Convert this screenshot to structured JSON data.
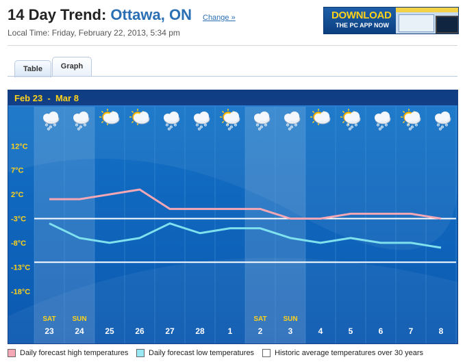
{
  "header": {
    "title_prefix": "14 Day Trend:",
    "title_location": "Ottawa, ON",
    "change_link": "Change »",
    "local_time": "Local Time: Friday, February 22, 2013, 5:34 pm"
  },
  "banner": {
    "line1": "DOWNLOAD",
    "line2": "THE PC APP NOW"
  },
  "tabs": [
    {
      "label": "Table",
      "active": false
    },
    {
      "label": "Graph",
      "active": true
    }
  ],
  "chart_data": {
    "type": "line",
    "date_range": "Feb 23  -  Mar 8",
    "categories": [
      "23",
      "24",
      "25",
      "26",
      "27",
      "28",
      "1",
      "2",
      "3",
      "4",
      "5",
      "6",
      "7",
      "8"
    ],
    "day_labels": [
      "SAT",
      "SUN",
      "",
      "",
      "",
      "",
      "",
      "SAT",
      "SUN",
      "",
      "",
      "",
      "",
      ""
    ],
    "weekend_shaded": [
      true,
      true,
      false,
      false,
      false,
      false,
      false,
      true,
      true,
      false,
      false,
      false,
      false,
      false
    ],
    "icons": [
      "snow-flurries-icon",
      "snow-icon",
      "partly-sunny-icon",
      "sunny-cloudy-icon",
      "snow-icon",
      "snow-icon",
      "sun-snow-icon",
      "snow-icon",
      "snow-icon",
      "partly-sunny-icon",
      "sun-snow-icon",
      "snow-icon",
      "sun-snow-icon",
      "snow-icon"
    ],
    "y_ticks": [
      "12°C",
      "7°C",
      "2°C",
      "-3°C",
      "-8°C",
      "-13°C",
      "-18°C"
    ],
    "y_tick_values": [
      12,
      7,
      2,
      -3,
      -8,
      -13,
      -18
    ],
    "ylim": [
      -21,
      15
    ],
    "series": [
      {
        "name": "Daily forecast high temperatures",
        "color": "#f4a7b4",
        "values": [
          1,
          1,
          2,
          3,
          -1,
          -1,
          -1,
          -1,
          -3,
          -3,
          -2,
          -2,
          -2,
          -3
        ]
      },
      {
        "name": "Daily forecast low temperatures",
        "color": "#7fe0ee",
        "values": [
          -4,
          -7,
          -8,
          -7,
          -4,
          -6,
          -5,
          -5,
          -7,
          -8,
          -7,
          -8,
          -8,
          -9
        ]
      }
    ],
    "historic_avg": {
      "name": "Historic average temperatures over 30 years",
      "color": "#ffffff",
      "high": -3,
      "low": -12
    },
    "grid": true
  },
  "legend": [
    {
      "label": "Daily forecast high temperatures",
      "color": "#f4a7b4"
    },
    {
      "label": "Daily forecast low temperatures",
      "color": "#9be8f5"
    },
    {
      "label": "Historic average temperatures over 30 years",
      "color": "#ffffff"
    }
  ]
}
